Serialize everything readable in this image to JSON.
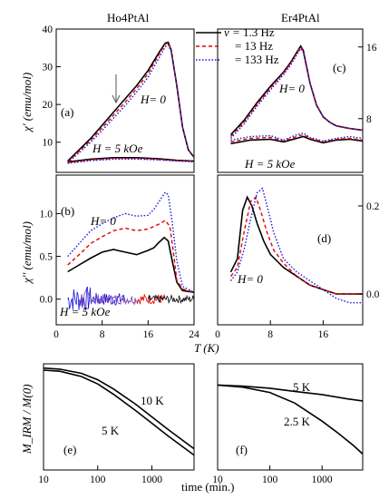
{
  "chart_data": [
    {
      "type": "line",
      "panel_label": "(a)",
      "title": "Ho4PtAl",
      "ylabel": "χ' (emu/mol)",
      "xlim": [
        0,
        24
      ],
      "ylim": [
        2,
        40
      ],
      "yticks": [
        "10",
        "20",
        "30",
        "40"
      ],
      "annotations": [
        "H= 0",
        "H = 5 kOe"
      ],
      "marker": "arrow at T≈11 K",
      "legend": {
        "placement": "top-right",
        "prefix": "ν = ",
        "entries": [
          "1.3 Hz",
          "= 13 Hz",
          "= 133 Hz"
        ]
      },
      "series": [
        {
          "name": "1.3 Hz",
          "color": "#000000",
          "style": "solid",
          "x": [
            2,
            4,
            6,
            8,
            10,
            12,
            14,
            16,
            18,
            19,
            19.5,
            20,
            21,
            22,
            23,
            24
          ],
          "y": [
            5.0,
            8.0,
            11.0,
            14.5,
            18.0,
            21.5,
            25.0,
            29.0,
            34.0,
            36.3,
            36.5,
            34.5,
            25.0,
            14.0,
            8.0,
            6.0
          ]
        },
        {
          "name": "13 Hz",
          "color": "#e00000",
          "style": "dashed",
          "x": [
            2,
            4,
            6,
            8,
            10,
            12,
            14,
            16,
            18,
            19,
            19.5,
            20,
            21,
            22,
            23,
            24
          ],
          "y": [
            4.8,
            7.6,
            10.5,
            13.8,
            17.2,
            20.6,
            24.2,
            28.2,
            33.5,
            36.0,
            36.3,
            34.5,
            25.0,
            14.0,
            8.0,
            6.0
          ]
        },
        {
          "name": "133 Hz",
          "color": "#1515e0",
          "style": "dotted",
          "x": [
            2,
            4,
            6,
            8,
            10,
            12,
            14,
            16,
            18,
            19,
            19.5,
            20,
            21,
            22,
            23,
            24
          ],
          "y": [
            4.6,
            7.2,
            10.0,
            13.1,
            16.4,
            19.7,
            23.3,
            27.2,
            32.6,
            35.3,
            35.8,
            34.2,
            25.0,
            14.0,
            8.0,
            6.0
          ]
        },
        {
          "name": "5 kOe 1.3 Hz",
          "color": "#000000",
          "style": "solid",
          "x": [
            2,
            6,
            10,
            14,
            18,
            21,
            24
          ],
          "y": [
            4.8,
            5.5,
            5.9,
            5.9,
            5.6,
            5.2,
            5.0
          ]
        },
        {
          "name": "5 kOe 13 Hz",
          "color": "#e00000",
          "style": "dashed",
          "x": [
            2,
            6,
            10,
            14,
            18,
            21,
            24
          ],
          "y": [
            4.6,
            5.3,
            5.7,
            5.7,
            5.4,
            5.1,
            4.9
          ]
        },
        {
          "name": "5 kOe 133 Hz",
          "color": "#1515e0",
          "style": "dotted",
          "x": [
            2,
            6,
            10,
            14,
            18,
            21,
            24
          ],
          "y": [
            4.4,
            5.1,
            5.5,
            5.5,
            5.3,
            5.0,
            4.8
          ]
        }
      ]
    },
    {
      "type": "line",
      "panel_label": "(b)",
      "ylabel": "χ'' (emu/mol)",
      "xlabel": "T (K)",
      "xlim": [
        0,
        24
      ],
      "ylim": [
        -0.3,
        1.45
      ],
      "xticks": [
        "0",
        "8",
        "16",
        "24"
      ],
      "yticks": [
        "0.0",
        "0.5",
        "1.0"
      ],
      "annotations": [
        "H= 0",
        "H = 5 kOe"
      ],
      "series": [
        {
          "name": "1.3 Hz",
          "color": "#000000",
          "style": "solid",
          "x": [
            2,
            4,
            6,
            8,
            10,
            12,
            14,
            16,
            17,
            18,
            18.8,
            19.5,
            20.2,
            21,
            22,
            24
          ],
          "y": [
            0.32,
            0.4,
            0.48,
            0.55,
            0.58,
            0.55,
            0.52,
            0.57,
            0.6,
            0.67,
            0.72,
            0.68,
            0.45,
            0.2,
            0.1,
            0.08
          ]
        },
        {
          "name": "13 Hz",
          "color": "#e00000",
          "style": "dashed",
          "x": [
            2,
            4,
            6,
            8,
            10,
            12,
            14,
            16,
            17,
            18,
            19,
            19.8,
            20.5,
            21,
            22,
            24
          ],
          "y": [
            0.4,
            0.52,
            0.65,
            0.73,
            0.8,
            0.83,
            0.8,
            0.82,
            0.85,
            0.88,
            0.92,
            0.85,
            0.5,
            0.22,
            0.12,
            0.08
          ]
        },
        {
          "name": "133 Hz",
          "color": "#1515e0",
          "style": "dotted",
          "x": [
            2,
            4,
            6,
            8,
            10,
            12,
            14,
            16,
            17,
            18,
            19,
            19.5,
            20.2,
            21,
            22,
            24
          ],
          "y": [
            0.5,
            0.65,
            0.8,
            0.88,
            0.95,
            1.0,
            0.97,
            0.98,
            1.05,
            1.15,
            1.25,
            1.22,
            0.9,
            0.45,
            0.15,
            0.08
          ]
        }
      ]
    },
    {
      "type": "line",
      "panel_label": "(c)",
      "title": "Er4PtAl",
      "xlim": [
        0,
        22
      ],
      "ylim": [
        2,
        18
      ],
      "yticks": [
        "8",
        "16"
      ],
      "annotations": [
        "H= 0",
        "H = 5 kOe"
      ],
      "series": [
        {
          "name": "1.3 Hz",
          "color": "#000000",
          "style": "solid",
          "x": [
            2,
            4,
            6,
            8,
            10,
            11,
            12,
            12.6,
            13,
            14,
            15,
            16,
            17,
            18,
            20,
            22
          ],
          "y": [
            6.2,
            7.8,
            9.8,
            11.6,
            13.2,
            14.2,
            15.4,
            16.1,
            15.6,
            12.0,
            9.5,
            8.2,
            7.6,
            7.2,
            6.9,
            6.7
          ]
        },
        {
          "name": "13 Hz",
          "color": "#e00000",
          "style": "dashed",
          "x": [
            2,
            4,
            6,
            8,
            10,
            11,
            12,
            12.6,
            13,
            14,
            15,
            16,
            17,
            18,
            20,
            22
          ],
          "y": [
            6.0,
            7.6,
            9.6,
            11.4,
            13.1,
            14.1,
            15.3,
            16.0,
            15.5,
            12.0,
            9.5,
            8.2,
            7.6,
            7.2,
            6.9,
            6.7
          ]
        },
        {
          "name": "133 Hz",
          "color": "#1515e0",
          "style": "dotted",
          "x": [
            2,
            4,
            6,
            8,
            10,
            11,
            12,
            12.6,
            13,
            14,
            15,
            16,
            17,
            18,
            20,
            22
          ],
          "y": [
            5.8,
            7.4,
            9.4,
            11.2,
            12.9,
            13.9,
            15.1,
            15.8,
            15.4,
            12.0,
            9.5,
            8.2,
            7.6,
            7.2,
            6.9,
            6.7
          ]
        },
        {
          "name": "5 kOe 1.3 Hz",
          "color": "#000000",
          "style": "solid",
          "x": [
            2,
            5,
            8,
            10,
            12,
            13,
            14,
            16,
            18,
            20,
            22
          ],
          "y": [
            5.2,
            5.6,
            5.7,
            5.4,
            5.8,
            6.0,
            5.7,
            5.3,
            5.6,
            5.7,
            5.5
          ]
        },
        {
          "name": "5 kOe 13 Hz",
          "color": "#e00000",
          "style": "dashed",
          "x": [
            2,
            5,
            8,
            10,
            12,
            13,
            14,
            16,
            18,
            20,
            22
          ],
          "y": [
            5.4,
            5.8,
            5.9,
            5.5,
            6.0,
            6.2,
            5.8,
            5.4,
            5.7,
            5.8,
            5.6
          ]
        },
        {
          "name": "5 kOe 133 Hz",
          "color": "#1515e0",
          "style": "dotted",
          "x": [
            2,
            5,
            8,
            10,
            12,
            13,
            14,
            16,
            18,
            20,
            22
          ],
          "y": [
            5.6,
            6.0,
            6.1,
            5.6,
            6.2,
            6.4,
            5.9,
            5.5,
            5.8,
            6.0,
            5.8
          ]
        }
      ]
    },
    {
      "type": "line",
      "panel_label": "(d)",
      "xlim": [
        0,
        22
      ],
      "ylim": [
        -0.07,
        0.27
      ],
      "xticks": [
        "0",
        "8",
        "16"
      ],
      "yticks": [
        "0.0",
        "0.2"
      ],
      "annotations": [
        "H= 0"
      ],
      "series": [
        {
          "name": "1.3 Hz",
          "color": "#000000",
          "style": "solid",
          "x": [
            2,
            3,
            3.8,
            4.5,
            5.2,
            6,
            7,
            8,
            10,
            12,
            14,
            16,
            18,
            20,
            22
          ],
          "y": [
            0.05,
            0.08,
            0.19,
            0.22,
            0.2,
            0.16,
            0.12,
            0.09,
            0.06,
            0.04,
            0.02,
            0.01,
            0.0,
            0.0,
            0.0
          ]
        },
        {
          "name": "13 Hz",
          "color": "#e00000",
          "style": "dashed",
          "x": [
            2,
            3,
            4,
            5,
            5.8,
            6.5,
            7.5,
            8.5,
            10,
            12,
            14,
            16,
            18,
            20,
            22
          ],
          "y": [
            0.04,
            0.06,
            0.14,
            0.21,
            0.22,
            0.19,
            0.14,
            0.1,
            0.07,
            0.04,
            0.02,
            0.01,
            0.0,
            0.0,
            0.0
          ]
        },
        {
          "name": "133 Hz",
          "color": "#1515e0",
          "style": "dotted",
          "x": [
            2,
            3,
            4,
            5,
            6,
            6.8,
            7.5,
            8.5,
            10,
            12,
            14,
            16,
            18,
            20,
            22
          ],
          "y": [
            0.03,
            0.05,
            0.1,
            0.17,
            0.23,
            0.24,
            0.2,
            0.14,
            0.08,
            0.05,
            0.03,
            0.01,
            -0.01,
            -0.02,
            -0.02
          ]
        }
      ]
    },
    {
      "type": "line",
      "panel_label": "(e)",
      "ylabel": "M_IRM / M(0)",
      "xlabel": "time (min.)",
      "xscale": "log",
      "xlim": [
        10,
        6000
      ],
      "ylim": [
        0,
        1
      ],
      "xticks": [
        "10",
        "100",
        "1000"
      ],
      "series": [
        {
          "name": "10 K",
          "color": "#000000",
          "style": "solid",
          "x": [
            10,
            20,
            50,
            100,
            200,
            500,
            1000,
            2000,
            6000
          ],
          "y": [
            0.96,
            0.95,
            0.91,
            0.85,
            0.76,
            0.62,
            0.5,
            0.38,
            0.2
          ]
        },
        {
          "name": "5 K",
          "color": "#000000",
          "style": "solid",
          "x": [
            10,
            20,
            50,
            100,
            200,
            500,
            1000,
            2000,
            6000
          ],
          "y": [
            0.94,
            0.93,
            0.88,
            0.81,
            0.71,
            0.56,
            0.44,
            0.32,
            0.14
          ]
        }
      ]
    },
    {
      "type": "line",
      "panel_label": "(f)",
      "xlabel": "time (min.)",
      "xscale": "log",
      "xlim": [
        10,
        6000
      ],
      "ylim": [
        0,
        1
      ],
      "xticks": [
        "10",
        "100",
        "1000"
      ],
      "series": [
        {
          "name": "5 K",
          "color": "#000000",
          "style": "solid",
          "x": [
            10,
            30,
            100,
            300,
            1000,
            3000,
            6000
          ],
          "y": [
            0.8,
            0.79,
            0.77,
            0.74,
            0.71,
            0.67,
            0.65
          ]
        },
        {
          "name": "2.5 K",
          "color": "#000000",
          "style": "solid",
          "x": [
            10,
            30,
            100,
            300,
            1000,
            2000,
            4000,
            6000
          ],
          "y": [
            0.8,
            0.78,
            0.73,
            0.63,
            0.46,
            0.35,
            0.23,
            0.15
          ]
        }
      ]
    }
  ],
  "curve_labels": {
    "e": [
      "10 K",
      "5 K"
    ],
    "f": [
      "5 K",
      "2.5 K"
    ]
  }
}
